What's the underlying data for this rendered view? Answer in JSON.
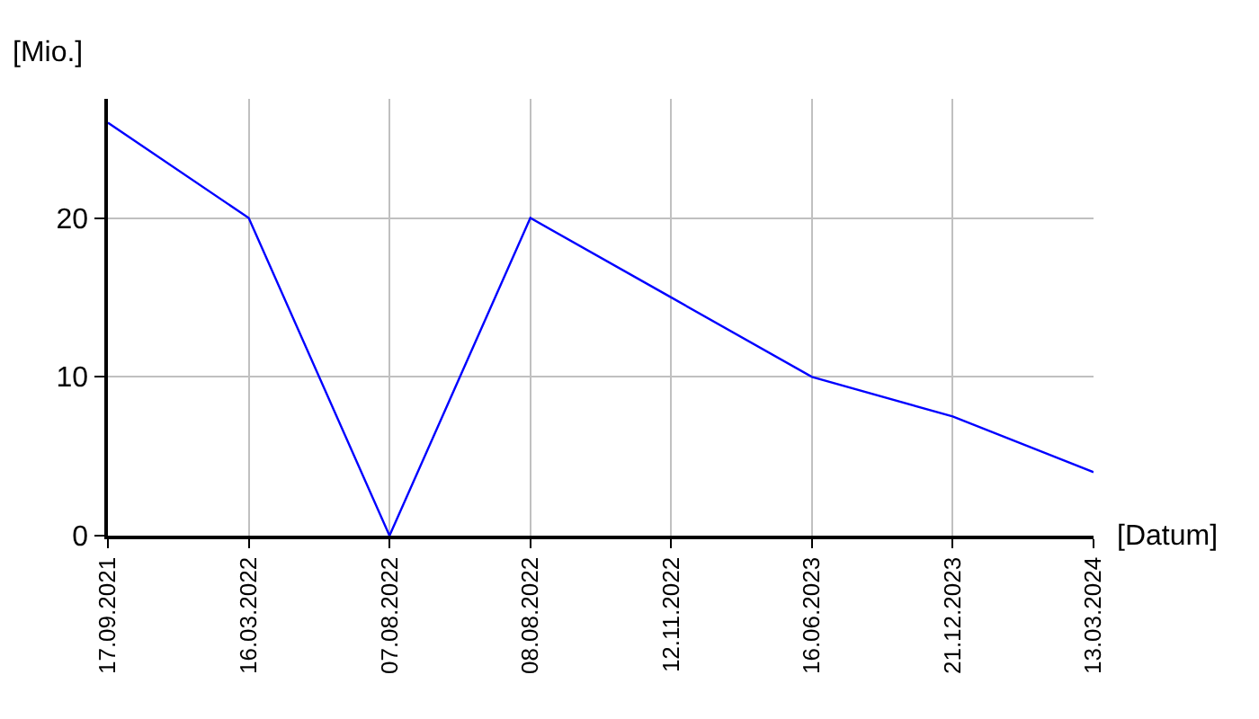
{
  "chart_data": {
    "type": "line",
    "xlabel": "[Datum]",
    "ylabel": "[Mio.]",
    "categories": [
      "17.09.2021",
      "16.03.2022",
      "07.08.2022",
      "08.08.2022",
      "12.11.2022",
      "16.06.2023",
      "21.12.2023",
      "13.03.2024"
    ],
    "series": [
      {
        "color": "#0000ff",
        "values": [
          26,
          20,
          0,
          20,
          15,
          10,
          7.5,
          4
        ]
      }
    ],
    "ylim": [
      0,
      27.5
    ],
    "yticks": [
      0,
      10,
      20
    ],
    "grid": true,
    "marker": "none",
    "line_style": "solid"
  }
}
